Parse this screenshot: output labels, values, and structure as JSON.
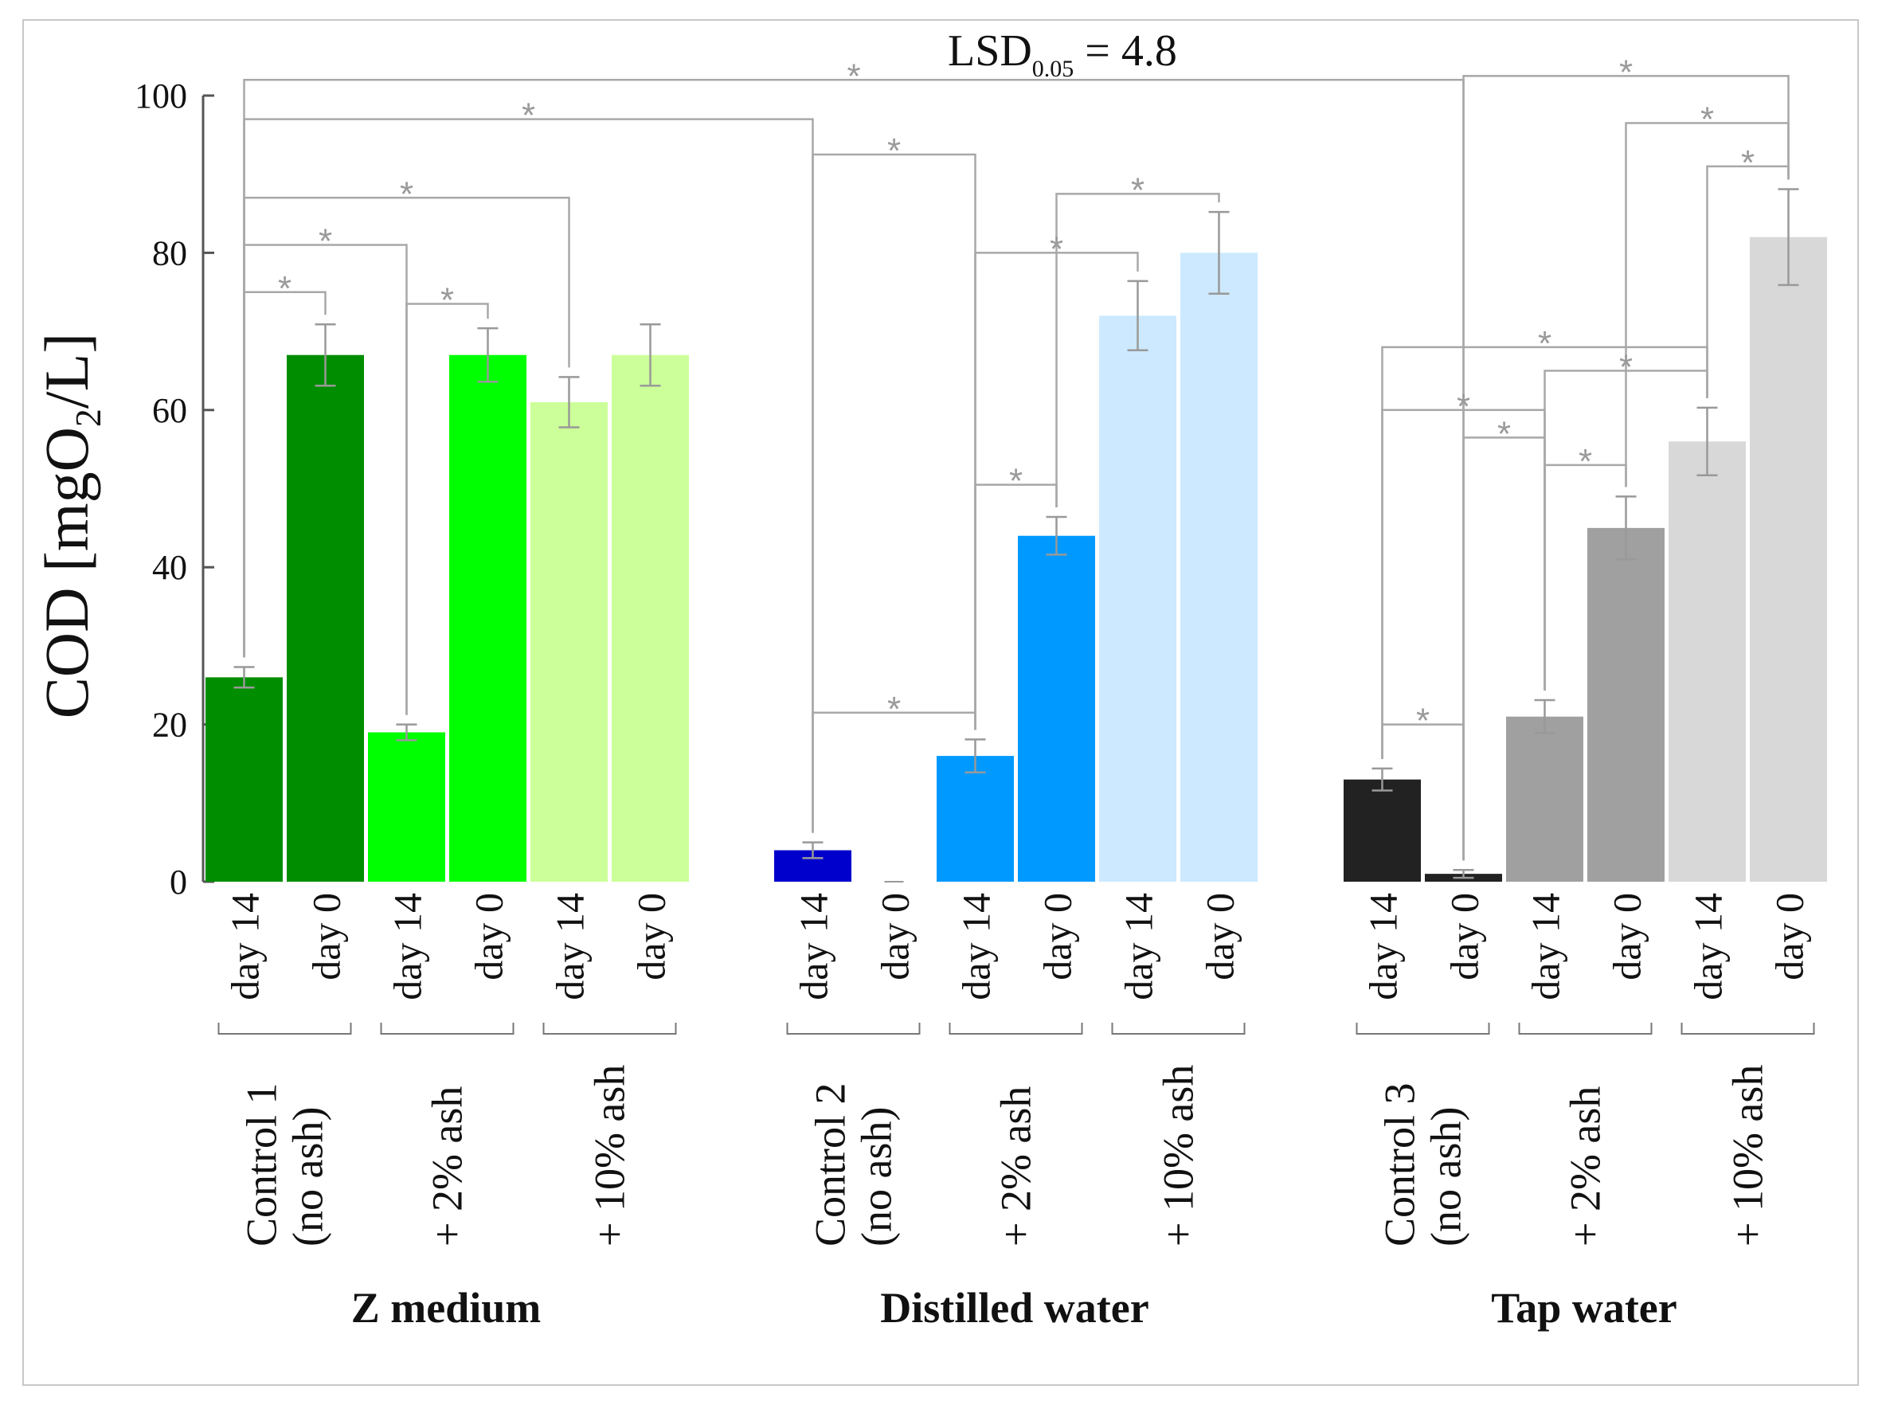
{
  "chart_data": {
    "type": "bar",
    "title": "",
    "ylabel": "COD [mgO2/L]",
    "ylabel_parts": {
      "pre": "COD [mgO",
      "sub": "2",
      "post": "/L]"
    },
    "ylim": [
      0,
      100
    ],
    "yticks": [
      "0",
      "20",
      "40",
      "60",
      "80",
      "100"
    ],
    "lsd_annotation": {
      "pre": "LSD",
      "sub": "0.05",
      "post": " = 4.8"
    },
    "significance_marker": "*",
    "groups": [
      {
        "name": "Z medium",
        "treatments": [
          {
            "label_lines": [
              "Control 1",
              "(no ash)"
            ],
            "bars": [
              {
                "day": "day 14",
                "value": 26,
                "error": 1.3,
                "color": "#008d00"
              },
              {
                "day": "day 0",
                "value": 67,
                "error": 3.9,
                "color": "#008d00"
              }
            ]
          },
          {
            "label_lines": [
              "+ 2% ash"
            ],
            "bars": [
              {
                "day": "day 14",
                "value": 19,
                "error": 1.0,
                "color": "#00ff00"
              },
              {
                "day": "day 0",
                "value": 67,
                "error": 3.4,
                "color": "#00ff00"
              }
            ]
          },
          {
            "label_lines": [
              "+ 10% ash"
            ],
            "bars": [
              {
                "day": "day 14",
                "value": 61,
                "error": 3.2,
                "color": "#ccff99"
              },
              {
                "day": "day 0",
                "value": 67,
                "error": 3.9,
                "color": "#ccff99"
              }
            ]
          }
        ]
      },
      {
        "name": "Distilled water",
        "treatments": [
          {
            "label_lines": [
              "Control 2",
              "(no ash)"
            ],
            "bars": [
              {
                "day": "day 14",
                "value": 4,
                "error": 1.0,
                "color": "#0000cc"
              },
              {
                "day": "day 0",
                "value": 0,
                "error": 0,
                "color": "#0000cc"
              }
            ]
          },
          {
            "label_lines": [
              "+ 2% ash"
            ],
            "bars": [
              {
                "day": "day 14",
                "value": 16,
                "error": 2.1,
                "color": "#0099ff"
              },
              {
                "day": "day 0",
                "value": 44,
                "error": 2.4,
                "color": "#0099ff"
              }
            ]
          },
          {
            "label_lines": [
              "+ 10% ash"
            ],
            "bars": [
              {
                "day": "day 14",
                "value": 72,
                "error": 4.4,
                "color": "#cce9ff"
              },
              {
                "day": "day 0",
                "value": 80,
                "error": 5.2,
                "color": "#cce9ff"
              }
            ]
          }
        ]
      },
      {
        "name": "Tap water",
        "treatments": [
          {
            "label_lines": [
              "Control 3",
              "(no ash)"
            ],
            "bars": [
              {
                "day": "day 14",
                "value": 13,
                "error": 1.4,
                "color": "#222222"
              },
              {
                "day": "day 0",
                "value": 1,
                "error": 0.5,
                "color": "#222222"
              }
            ]
          },
          {
            "label_lines": [
              "+ 2% ash"
            ],
            "bars": [
              {
                "day": "day 14",
                "value": 21,
                "error": 2.1,
                "color": "#a0a0a0"
              },
              {
                "day": "day 0",
                "value": 45,
                "error": 4.0,
                "color": "#a0a0a0"
              }
            ]
          },
          {
            "label_lines": [
              "+ 10% ash"
            ],
            "bars": [
              {
                "day": "day 14",
                "value": 56,
                "error": 4.3,
                "color": "#d8d8d8"
              },
              {
                "day": "day 0",
                "value": 82,
                "error": 6.1,
                "color": "#d8d8d8"
              }
            ]
          }
        ]
      }
    ],
    "significance_brackets": [
      {
        "from": 0,
        "to": 13,
        "level": 102
      },
      {
        "from": 0,
        "to": 6,
        "level": 97
      },
      {
        "from": 0,
        "to": 4,
        "level": 87
      },
      {
        "from": 0,
        "to": 2,
        "level": 81
      },
      {
        "from": 0,
        "to": 1,
        "level": 75
      },
      {
        "from": 2,
        "to": 3,
        "level": 73.5
      },
      {
        "from": 6,
        "to": 8,
        "level": 92.5
      },
      {
        "from": 9,
        "to": 11,
        "level": 87.5
      },
      {
        "from": 8,
        "to": 10,
        "level": 80
      },
      {
        "from": 6,
        "to": 8,
        "level": 21.5
      },
      {
        "from": 8,
        "to": 9,
        "level": 50.5
      },
      {
        "from": 13,
        "to": 17,
        "level": 102.5
      },
      {
        "from": 15,
        "to": 17,
        "level": 96.5
      },
      {
        "from": 16,
        "to": 17,
        "level": 91
      },
      {
        "from": 12,
        "to": 16,
        "level": 68
      },
      {
        "from": 14,
        "to": 16,
        "level": 65
      },
      {
        "from": 12,
        "to": 14,
        "level": 60
      },
      {
        "from": 13,
        "to": 14,
        "level": 56.5
      },
      {
        "from": 14,
        "to": 15,
        "level": 53
      },
      {
        "from": 12,
        "to": 13,
        "level": 20
      }
    ]
  }
}
